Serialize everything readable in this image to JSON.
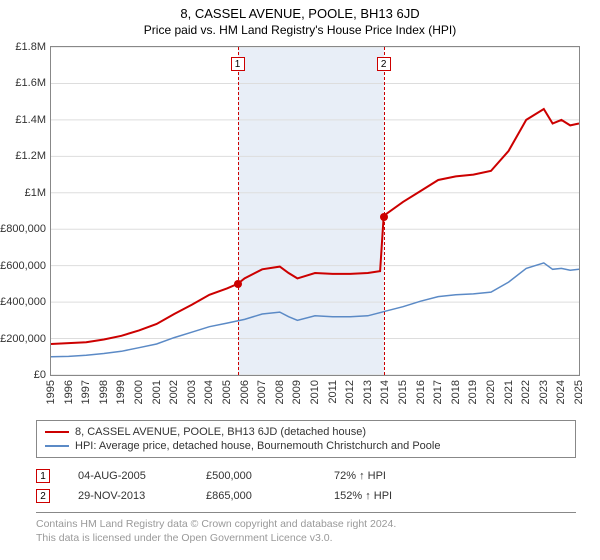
{
  "title": {
    "main": "8, CASSEL AVENUE, POOLE, BH13 6JD",
    "sub": "Price paid vs. HM Land Registry's House Price Index (HPI)"
  },
  "chart": {
    "type": "line",
    "background_color": "#ffffff",
    "plot_border_color": "#888888",
    "grid_color": "#dddddd",
    "x": {
      "min": 1995,
      "max": 2025,
      "ticks": [
        1995,
        1996,
        1997,
        1998,
        1999,
        2000,
        2001,
        2002,
        2003,
        2004,
        2005,
        2006,
        2007,
        2008,
        2009,
        2010,
        2011,
        2012,
        2013,
        2014,
        2015,
        2016,
        2017,
        2018,
        2019,
        2020,
        2021,
        2022,
        2023,
        2024,
        2025
      ]
    },
    "y": {
      "min": 0,
      "max": 1800000,
      "tick_step": 200000,
      "tick_labels": [
        "£0",
        "£200,000",
        "£400,000",
        "£600,000",
        "£800,000",
        "£1M",
        "£1.2M",
        "£1.4M",
        "£1.6M",
        "£1.8M"
      ]
    },
    "shade": {
      "start": 2005.6,
      "end": 2013.9,
      "color": "#e8eef7"
    },
    "series": [
      {
        "name": "property",
        "label": "8, CASSEL AVENUE, POOLE, BH13 6JD (detached house)",
        "color": "#cc0000",
        "width": 2,
        "points": [
          [
            1995,
            170000
          ],
          [
            1996,
            175000
          ],
          [
            1997,
            180000
          ],
          [
            1998,
            195000
          ],
          [
            1999,
            215000
          ],
          [
            2000,
            245000
          ],
          [
            2001,
            280000
          ],
          [
            2002,
            335000
          ],
          [
            2003,
            385000
          ],
          [
            2004,
            440000
          ],
          [
            2005,
            475000
          ],
          [
            2005.6,
            500000
          ],
          [
            2006,
            530000
          ],
          [
            2007,
            580000
          ],
          [
            2008,
            595000
          ],
          [
            2008.5,
            560000
          ],
          [
            2009,
            530000
          ],
          [
            2010,
            560000
          ],
          [
            2011,
            555000
          ],
          [
            2012,
            555000
          ],
          [
            2013,
            560000
          ],
          [
            2013.7,
            570000
          ],
          [
            2013.9,
            865000
          ],
          [
            2014,
            880000
          ],
          [
            2015,
            950000
          ],
          [
            2016,
            1010000
          ],
          [
            2017,
            1070000
          ],
          [
            2018,
            1090000
          ],
          [
            2019,
            1100000
          ],
          [
            2020,
            1120000
          ],
          [
            2021,
            1230000
          ],
          [
            2022,
            1400000
          ],
          [
            2023,
            1460000
          ],
          [
            2023.5,
            1380000
          ],
          [
            2024,
            1400000
          ],
          [
            2024.5,
            1370000
          ],
          [
            2025,
            1380000
          ]
        ]
      },
      {
        "name": "hpi",
        "label": "HPI: Average price, detached house, Bournemouth Christchurch and Poole",
        "color": "#5b8ac6",
        "width": 1.5,
        "points": [
          [
            1995,
            100000
          ],
          [
            1996,
            102000
          ],
          [
            1997,
            108000
          ],
          [
            1998,
            118000
          ],
          [
            1999,
            130000
          ],
          [
            2000,
            150000
          ],
          [
            2001,
            170000
          ],
          [
            2002,
            205000
          ],
          [
            2003,
            235000
          ],
          [
            2004,
            265000
          ],
          [
            2005,
            285000
          ],
          [
            2006,
            305000
          ],
          [
            2007,
            335000
          ],
          [
            2008,
            345000
          ],
          [
            2008.5,
            320000
          ],
          [
            2009,
            300000
          ],
          [
            2010,
            325000
          ],
          [
            2011,
            320000
          ],
          [
            2012,
            320000
          ],
          [
            2013,
            325000
          ],
          [
            2014,
            350000
          ],
          [
            2015,
            375000
          ],
          [
            2016,
            405000
          ],
          [
            2017,
            430000
          ],
          [
            2018,
            440000
          ],
          [
            2019,
            445000
          ],
          [
            2020,
            455000
          ],
          [
            2021,
            510000
          ],
          [
            2022,
            585000
          ],
          [
            2023,
            615000
          ],
          [
            2023.5,
            580000
          ],
          [
            2024,
            585000
          ],
          [
            2024.5,
            575000
          ],
          [
            2025,
            580000
          ]
        ]
      }
    ],
    "markers": [
      {
        "x": 2005.6,
        "y": 500000,
        "color": "#cc0000"
      },
      {
        "x": 2013.9,
        "y": 865000,
        "color": "#cc0000"
      }
    ],
    "event_lines": [
      {
        "x": 2005.6,
        "label": "1",
        "color": "#cc0000"
      },
      {
        "x": 2013.9,
        "label": "2",
        "color": "#cc0000"
      }
    ]
  },
  "legend": {
    "items": [
      {
        "color": "#cc0000",
        "text": "8, CASSEL AVENUE, POOLE, BH13 6JD (detached house)"
      },
      {
        "color": "#5b8ac6",
        "text": "HPI: Average price, detached house, Bournemouth Christchurch and Poole"
      }
    ]
  },
  "events": [
    {
      "n": "1",
      "color": "#cc0000",
      "date": "04-AUG-2005",
      "price": "£500,000",
      "delta": "72% ↑ HPI"
    },
    {
      "n": "2",
      "color": "#cc0000",
      "date": "29-NOV-2013",
      "price": "£865,000",
      "delta": "152% ↑ HPI"
    }
  ],
  "footer": {
    "line1": "Contains HM Land Registry data © Crown copyright and database right 2024.",
    "line2": "This data is licensed under the Open Government Licence v3.0."
  }
}
